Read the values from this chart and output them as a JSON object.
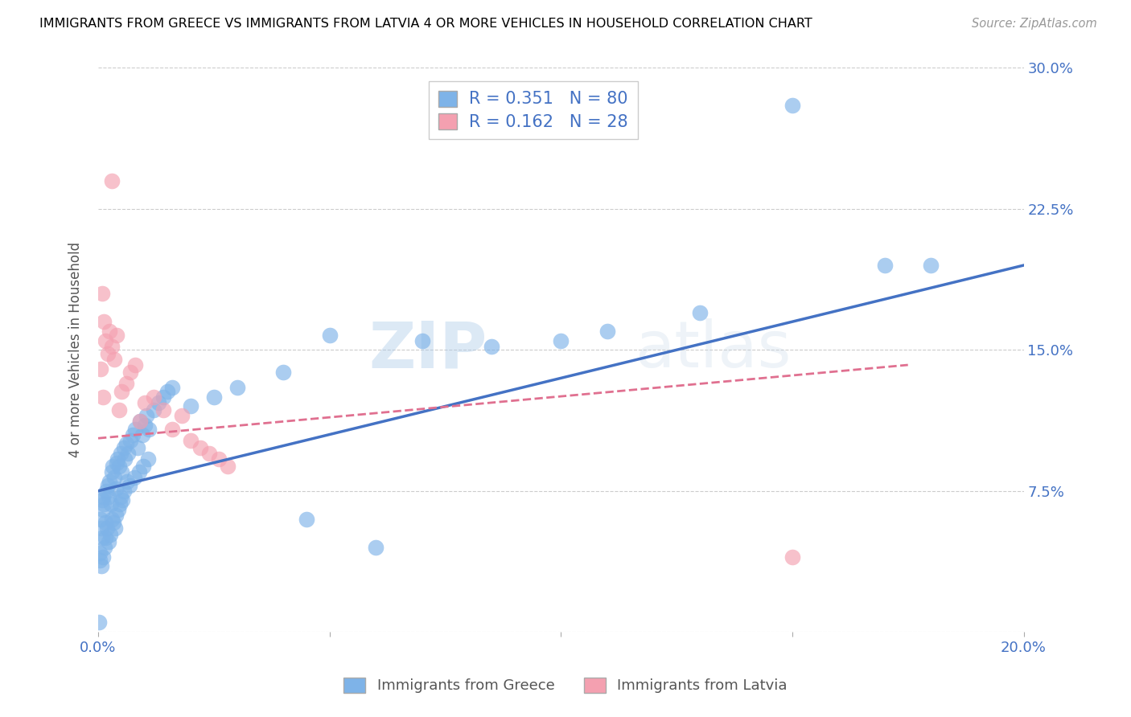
{
  "title": "IMMIGRANTS FROM GREECE VS IMMIGRANTS FROM LATVIA 4 OR MORE VEHICLES IN HOUSEHOLD CORRELATION CHART",
  "source": "Source: ZipAtlas.com",
  "ylabel": "4 or more Vehicles in Household",
  "xlim": [
    0.0,
    0.2
  ],
  "ylim": [
    0.0,
    0.3
  ],
  "xticks": [
    0.0,
    0.05,
    0.1,
    0.15,
    0.2
  ],
  "yticks": [
    0.0,
    0.075,
    0.15,
    0.225,
    0.3
  ],
  "xtick_labels": [
    "0.0%",
    "",
    "",
    "",
    "20.0%"
  ],
  "ytick_labels": [
    "",
    "7.5%",
    "15.0%",
    "22.5%",
    "30.0%"
  ],
  "greece_color": "#7EB3E8",
  "latvia_color": "#F4A0B0",
  "greece_line_color": "#4472C4",
  "latvia_line_color": "#E07090",
  "greece_R": 0.351,
  "greece_N": 80,
  "latvia_R": 0.162,
  "latvia_N": 28,
  "watermark_zip": "ZIP",
  "watermark_atlas": "atlas",
  "legend_label_greece": "Immigrants from Greece",
  "legend_label_latvia": "Immigrants from Latvia",
  "greece_line_x0": 0.0,
  "greece_line_y0": 0.075,
  "greece_line_x1": 0.2,
  "greece_line_y1": 0.195,
  "latvia_line_x0": 0.0,
  "latvia_line_y0": 0.103,
  "latvia_line_x1": 0.175,
  "latvia_line_y1": 0.142,
  "greece_x": [
    0.0005,
    0.001,
    0.0008,
    0.0015,
    0.001,
    0.0012,
    0.0007,
    0.0009,
    0.0018,
    0.002,
    0.0022,
    0.0025,
    0.003,
    0.0028,
    0.0032,
    0.0035,
    0.0038,
    0.004,
    0.0042,
    0.0045,
    0.0048,
    0.005,
    0.0055,
    0.0058,
    0.006,
    0.0065,
    0.007,
    0.0075,
    0.008,
    0.0085,
    0.009,
    0.0095,
    0.01,
    0.0105,
    0.011,
    0.012,
    0.013,
    0.014,
    0.015,
    0.016,
    0.0003,
    0.0004,
    0.0006,
    0.001,
    0.0013,
    0.0016,
    0.0019,
    0.0023,
    0.0026,
    0.0029,
    0.0033,
    0.0036,
    0.0039,
    0.0043,
    0.0046,
    0.0049,
    0.0052,
    0.0056,
    0.0062,
    0.0068,
    0.0078,
    0.0088,
    0.0098,
    0.0108,
    0.02,
    0.025,
    0.03,
    0.04,
    0.05,
    0.07,
    0.085,
    0.1,
    0.11,
    0.13,
    0.15,
    0.17,
    0.18,
    0.045,
    0.06,
    0.0002
  ],
  "greece_y": [
    0.06,
    0.065,
    0.07,
    0.058,
    0.072,
    0.068,
    0.055,
    0.05,
    0.075,
    0.078,
    0.072,
    0.08,
    0.085,
    0.068,
    0.088,
    0.082,
    0.076,
    0.09,
    0.092,
    0.088,
    0.095,
    0.085,
    0.098,
    0.092,
    0.1,
    0.095,
    0.102,
    0.105,
    0.108,
    0.098,
    0.112,
    0.105,
    0.11,
    0.115,
    0.108,
    0.118,
    0.122,
    0.125,
    0.128,
    0.13,
    0.042,
    0.038,
    0.035,
    0.04,
    0.045,
    0.05,
    0.055,
    0.048,
    0.052,
    0.06,
    0.058,
    0.055,
    0.062,
    0.065,
    0.068,
    0.072,
    0.07,
    0.075,
    0.08,
    0.078,
    0.082,
    0.085,
    0.088,
    0.092,
    0.12,
    0.125,
    0.13,
    0.138,
    0.158,
    0.155,
    0.152,
    0.155,
    0.16,
    0.17,
    0.28,
    0.195,
    0.195,
    0.06,
    0.045,
    0.005
  ],
  "latvia_x": [
    0.0005,
    0.001,
    0.0015,
    0.002,
    0.0025,
    0.003,
    0.0035,
    0.004,
    0.0045,
    0.005,
    0.006,
    0.007,
    0.008,
    0.009,
    0.01,
    0.012,
    0.014,
    0.016,
    0.018,
    0.02,
    0.022,
    0.024,
    0.026,
    0.028,
    0.0008,
    0.0012,
    0.15,
    0.003
  ],
  "latvia_y": [
    0.14,
    0.125,
    0.155,
    0.148,
    0.16,
    0.152,
    0.145,
    0.158,
    0.118,
    0.128,
    0.132,
    0.138,
    0.142,
    0.112,
    0.122,
    0.125,
    0.118,
    0.108,
    0.115,
    0.102,
    0.098,
    0.095,
    0.092,
    0.088,
    0.18,
    0.165,
    0.04,
    0.24
  ]
}
